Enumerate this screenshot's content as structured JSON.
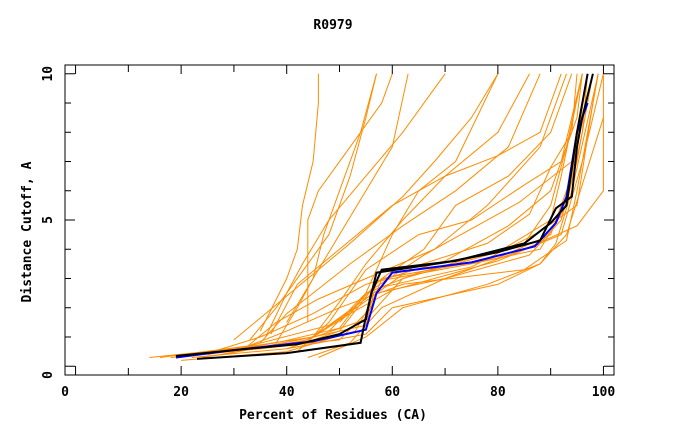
{
  "chart_data": {
    "type": "line",
    "title": "R0979",
    "xlabel": "Percent of Residues (CA)",
    "ylabel": "Distance Cutoff, A",
    "xlim": [
      -2,
      102
    ],
    "ylim": [
      -0.3,
      10.3
    ],
    "xticks": [
      "0",
      "20",
      "40",
      "60",
      "80",
      "100"
    ],
    "xtick_values": [
      0,
      20,
      40,
      60,
      80,
      100
    ],
    "yticks": [
      "0",
      "5",
      "10"
    ],
    "ytick_values": [
      0,
      5,
      10
    ],
    "grid": false,
    "colors": {
      "other_models": "#ff8c00",
      "highlight": "#0000ff",
      "reference": "#000000"
    },
    "orange_series": [
      [
        [
          14,
          0.3
        ],
        [
          30,
          0.6
        ],
        [
          45,
          1.0
        ],
        [
          55,
          1.4
        ],
        [
          57,
          2.9
        ],
        [
          75,
          3.5
        ],
        [
          88,
          4.0
        ],
        [
          93,
          5.5
        ],
        [
          96,
          8
        ],
        [
          97,
          10
        ]
      ],
      [
        [
          18,
          0.3
        ],
        [
          35,
          0.6
        ],
        [
          50,
          0.9
        ],
        [
          56,
          2.0
        ],
        [
          58,
          3.0
        ],
        [
          80,
          3.7
        ],
        [
          90,
          4.5
        ],
        [
          94,
          6.5
        ],
        [
          97,
          10
        ]
      ],
      [
        [
          20,
          0.2
        ],
        [
          40,
          0.5
        ],
        [
          53,
          1.2
        ],
        [
          57,
          2.5
        ],
        [
          70,
          3.0
        ],
        [
          86,
          3.8
        ],
        [
          92,
          5
        ],
        [
          95,
          7
        ],
        [
          98,
          10
        ]
      ],
      [
        [
          25,
          0.4
        ],
        [
          38,
          0.8
        ],
        [
          50,
          1.3
        ],
        [
          55,
          2.5
        ],
        [
          65,
          3.2
        ],
        [
          85,
          4.2
        ],
        [
          90,
          5.5
        ],
        [
          93,
          7.5
        ],
        [
          96,
          10
        ]
      ],
      [
        [
          22,
          0.3
        ],
        [
          40,
          0.6
        ],
        [
          55,
          1.1
        ],
        [
          60,
          2.0
        ],
        [
          80,
          2.8
        ],
        [
          88,
          3.5
        ],
        [
          91,
          4.2
        ],
        [
          94,
          6
        ],
        [
          99,
          10
        ]
      ],
      [
        [
          28,
          0.4
        ],
        [
          45,
          1.0
        ],
        [
          52,
          1.8
        ],
        [
          60,
          2.6
        ],
        [
          80,
          3.6
        ],
        [
          92,
          4.5
        ],
        [
          96,
          7
        ],
        [
          100,
          10
        ]
      ],
      [
        [
          30,
          0.5
        ],
        [
          40,
          1.2
        ],
        [
          50,
          2.0
        ],
        [
          62,
          2.8
        ],
        [
          85,
          3.3
        ],
        [
          93,
          4.3
        ],
        [
          95,
          6
        ],
        [
          97,
          8
        ],
        [
          99,
          10
        ]
      ],
      [
        [
          26,
          0.5
        ],
        [
          35,
          1.0
        ],
        [
          45,
          1.8
        ],
        [
          55,
          2.8
        ],
        [
          70,
          3.6
        ],
        [
          82,
          4.8
        ],
        [
          90,
          6
        ],
        [
          95,
          8.5
        ],
        [
          96,
          10
        ]
      ],
      [
        [
          32,
          0.6
        ],
        [
          38,
          1.5
        ],
        [
          46,
          2.3
        ],
        [
          55,
          3.0
        ],
        [
          68,
          4.0
        ],
        [
          78,
          5.5
        ],
        [
          88,
          7.5
        ],
        [
          93,
          10
        ]
      ],
      [
        [
          35,
          0.8
        ],
        [
          40,
          1.8
        ],
        [
          45,
          2.5
        ],
        [
          52,
          3.5
        ],
        [
          62,
          4.8
        ],
        [
          72,
          6
        ],
        [
          82,
          7.5
        ],
        [
          88,
          10
        ]
      ],
      [
        [
          36,
          1.0
        ],
        [
          40,
          2.5
        ],
        [
          43,
          3.5
        ],
        [
          48,
          5
        ],
        [
          55,
          6.5
        ],
        [
          62,
          8
        ],
        [
          70,
          10
        ]
      ],
      [
        [
          38,
          0.8
        ],
        [
          42,
          2.0
        ],
        [
          45,
          3.0
        ],
        [
          47,
          4.5
        ],
        [
          50,
          6
        ],
        [
          54,
          8
        ],
        [
          57,
          10
        ]
      ],
      [
        [
          35,
          1.2
        ],
        [
          40,
          3.0
        ],
        [
          42,
          4.0
        ],
        [
          43,
          5.5
        ],
        [
          45,
          7
        ],
        [
          46,
          9
        ],
        [
          46,
          10
        ]
      ],
      [
        [
          40,
          1.5
        ],
        [
          45,
          3
        ],
        [
          50,
          4.5
        ],
        [
          55,
          6
        ],
        [
          60,
          7.5
        ],
        [
          63,
          10
        ]
      ],
      [
        [
          45,
          1.0
        ],
        [
          50,
          2.2
        ],
        [
          55,
          3.5
        ],
        [
          62,
          5
        ],
        [
          70,
          6.5
        ],
        [
          80,
          8
        ],
        [
          86,
          10
        ]
      ],
      [
        [
          48,
          1.2
        ],
        [
          55,
          2.5
        ],
        [
          60,
          4.5
        ],
        [
          65,
          6
        ],
        [
          72,
          7
        ],
        [
          76,
          8.5
        ],
        [
          80,
          10
        ]
      ],
      [
        [
          50,
          1.5
        ],
        [
          58,
          3
        ],
        [
          66,
          4
        ],
        [
          72,
          5.5
        ],
        [
          82,
          6.5
        ],
        [
          90,
          8
        ],
        [
          94,
          10
        ]
      ],
      [
        [
          42,
          0.5
        ],
        [
          48,
          1.5
        ],
        [
          55,
          3.3
        ],
        [
          65,
          4.5
        ],
        [
          75,
          5
        ],
        [
          85,
          6.2
        ],
        [
          92,
          7
        ],
        [
          96,
          10
        ]
      ],
      [
        [
          44,
          0.3
        ],
        [
          52,
          0.8
        ],
        [
          58,
          2.0
        ],
        [
          70,
          3.0
        ],
        [
          85,
          4.0
        ],
        [
          95,
          4.8
        ],
        [
          100,
          6
        ],
        [
          100,
          10
        ]
      ],
      [
        [
          46,
          0.3
        ],
        [
          55,
          1.0
        ],
        [
          62,
          2.0
        ],
        [
          78,
          2.8
        ],
        [
          88,
          3.5
        ],
        [
          93,
          4.5
        ],
        [
          100,
          8.5
        ]
      ],
      [
        [
          33,
          0.9
        ],
        [
          38,
          2
        ],
        [
          44,
          3.5
        ],
        [
          48,
          4.5
        ],
        [
          52,
          6.5
        ],
        [
          55,
          8.5
        ],
        [
          57,
          10
        ]
      ],
      [
        [
          37,
          1.1
        ],
        [
          42,
          2.8
        ],
        [
          50,
          4
        ],
        [
          60,
          5.5
        ],
        [
          70,
          6.5
        ],
        [
          80,
          7.2
        ],
        [
          88,
          8
        ],
        [
          92,
          10
        ]
      ],
      [
        [
          40,
          0.6
        ],
        [
          50,
          1.2
        ],
        [
          56,
          2.6
        ],
        [
          66,
          3.8
        ],
        [
          74,
          4.6
        ],
        [
          84,
          5.6
        ],
        [
          94,
          7
        ],
        [
          98,
          10
        ]
      ],
      [
        [
          30,
          0.9
        ],
        [
          36,
          1.8
        ],
        [
          44,
          3
        ],
        [
          52,
          4.2
        ],
        [
          62,
          5.8
        ],
        [
          68,
          7
        ],
        [
          75,
          8.5
        ],
        [
          80,
          10
        ]
      ],
      [
        [
          44,
          1.5
        ],
        [
          44,
          5
        ],
        [
          46,
          6
        ],
        [
          52,
          7.5
        ],
        [
          58,
          9
        ],
        [
          60,
          10
        ]
      ],
      [
        [
          16,
          0.3
        ],
        [
          33,
          0.7
        ],
        [
          48,
          1.4
        ],
        [
          58,
          2.7
        ],
        [
          75,
          3.4
        ],
        [
          88,
          4.6
        ],
        [
          95,
          5.5
        ],
        [
          98,
          9
        ],
        [
          99,
          10
        ]
      ],
      [
        [
          20,
          0.35
        ],
        [
          42,
          0.8
        ],
        [
          55,
          1.6
        ],
        [
          62,
          3.0
        ],
        [
          80,
          3.9
        ],
        [
          90,
          5
        ],
        [
          92,
          6.5
        ],
        [
          96,
          10
        ]
      ],
      [
        [
          24,
          0.3
        ],
        [
          44,
          0.9
        ],
        [
          54,
          2.1
        ],
        [
          64,
          3.4
        ],
        [
          78,
          4.2
        ],
        [
          86,
          5.2
        ],
        [
          90,
          6.8
        ],
        [
          94,
          8
        ],
        [
          95,
          10
        ]
      ]
    ],
    "blue_series": [
      [
        19,
        0.3
      ],
      [
        30,
        0.55
      ],
      [
        45,
        0.85
      ],
      [
        55,
        1.25
      ],
      [
        57,
        2.5
      ],
      [
        60,
        3.2
      ],
      [
        75,
        3.55
      ],
      [
        87,
        4.1
      ],
      [
        91,
        4.9
      ],
      [
        93,
        5.8
      ],
      [
        95,
        8
      ],
      [
        97,
        9
      ]
    ],
    "black_series": [
      [
        [
          23,
          0.25
        ],
        [
          40,
          0.45
        ],
        [
          54,
          0.8
        ],
        [
          55,
          1.7
        ],
        [
          57,
          3.2
        ],
        [
          70,
          3.55
        ],
        [
          80,
          3.9
        ],
        [
          88,
          4.3
        ],
        [
          91,
          5.4
        ],
        [
          94,
          5.8
        ],
        [
          95,
          7.5
        ],
        [
          96,
          8.5
        ],
        [
          98,
          10
        ]
      ],
      [
        [
          19,
          0.35
        ],
        [
          30,
          0.55
        ],
        [
          42,
          0.75
        ],
        [
          50,
          1.1
        ],
        [
          55,
          1.6
        ],
        [
          56,
          2.5
        ],
        [
          58,
          3.3
        ],
        [
          72,
          3.6
        ],
        [
          85,
          4.2
        ],
        [
          90,
          4.9
        ],
        [
          93,
          5.5
        ],
        [
          95,
          8
        ],
        [
          97,
          10
        ]
      ]
    ]
  }
}
